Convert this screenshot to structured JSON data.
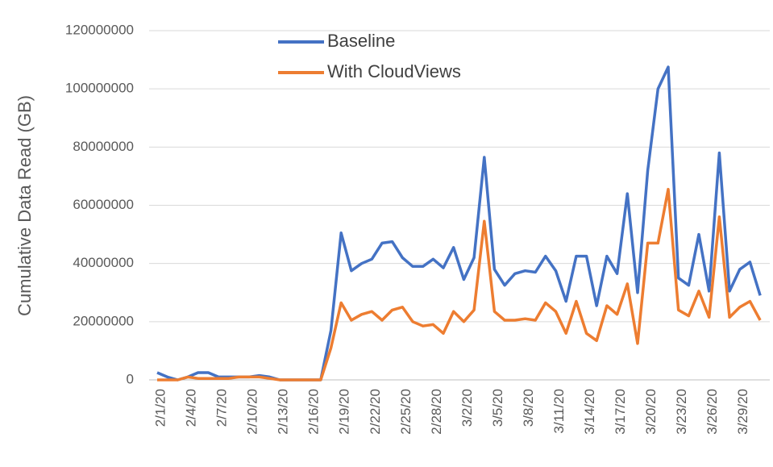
{
  "chart_data": {
    "type": "line",
    "y_label": "Cumulative Data Read (GB)",
    "categories": [
      "2/1/20",
      null,
      null,
      "2/4/20",
      null,
      null,
      "2/7/20",
      null,
      null,
      "2/10/20",
      null,
      null,
      "2/13/20",
      null,
      null,
      "2/16/20",
      null,
      null,
      "2/19/20",
      null,
      null,
      "2/22/20",
      null,
      null,
      "2/25/20",
      null,
      null,
      "2/28/20",
      null,
      null,
      "3/2/20",
      null,
      null,
      "3/5/20",
      null,
      null,
      "3/8/20",
      null,
      null,
      "3/11/20",
      null,
      null,
      "3/14/20",
      null,
      null,
      "3/17/20",
      null,
      null,
      "3/20/20",
      null,
      null,
      "3/23/20",
      null,
      null,
      "3/26/20",
      null,
      null,
      "3/29/20",
      null,
      null
    ],
    "series": [
      {
        "name": "Baseline",
        "color": "#4472c4",
        "values": [
          2500000,
          1000000,
          0,
          1000000,
          2500000,
          2500000,
          1000000,
          1000000,
          1000000,
          1000000,
          1500000,
          1000000,
          0,
          0,
          0,
          0,
          0,
          17000000,
          50500000,
          37500000,
          40000000,
          41500000,
          47000000,
          47500000,
          42000000,
          39000000,
          39000000,
          41500000,
          38500000,
          45500000,
          34500000,
          42000000,
          76500000,
          38000000,
          32500000,
          36500000,
          37500000,
          37000000,
          42500000,
          37500000,
          27000000,
          42500000,
          42500000,
          25500000,
          42500000,
          36500000,
          64000000,
          30000000,
          72000000,
          100000000,
          107500000,
          35000000,
          32500000,
          50000000,
          30500000,
          78000000,
          30500000,
          38000000,
          40500000,
          29000000
        ]
      },
      {
        "name": "With CloudViews",
        "color": "#ed7d31",
        "values": [
          0,
          0,
          0,
          1000000,
          500000,
          500000,
          500000,
          500000,
          1000000,
          1000000,
          1000000,
          500000,
          0,
          0,
          0,
          0,
          0,
          11000000,
          26500000,
          20500000,
          22500000,
          23500000,
          20500000,
          24000000,
          25000000,
          20000000,
          18500000,
          19000000,
          16000000,
          23500000,
          20000000,
          24000000,
          54500000,
          23500000,
          20500000,
          20500000,
          21000000,
          20500000,
          26500000,
          23500000,
          16000000,
          27000000,
          16000000,
          13500000,
          25500000,
          22500000,
          33000000,
          12500000,
          47000000,
          47000000,
          65500000,
          24000000,
          22000000,
          30500000,
          21500000,
          56000000,
          21500000,
          25000000,
          27000000,
          20500000
        ]
      }
    ],
    "ylim": [
      0,
      120000000
    ],
    "yticks": [
      0,
      20000000,
      40000000,
      60000000,
      80000000,
      100000000,
      120000000
    ],
    "grid": true
  }
}
